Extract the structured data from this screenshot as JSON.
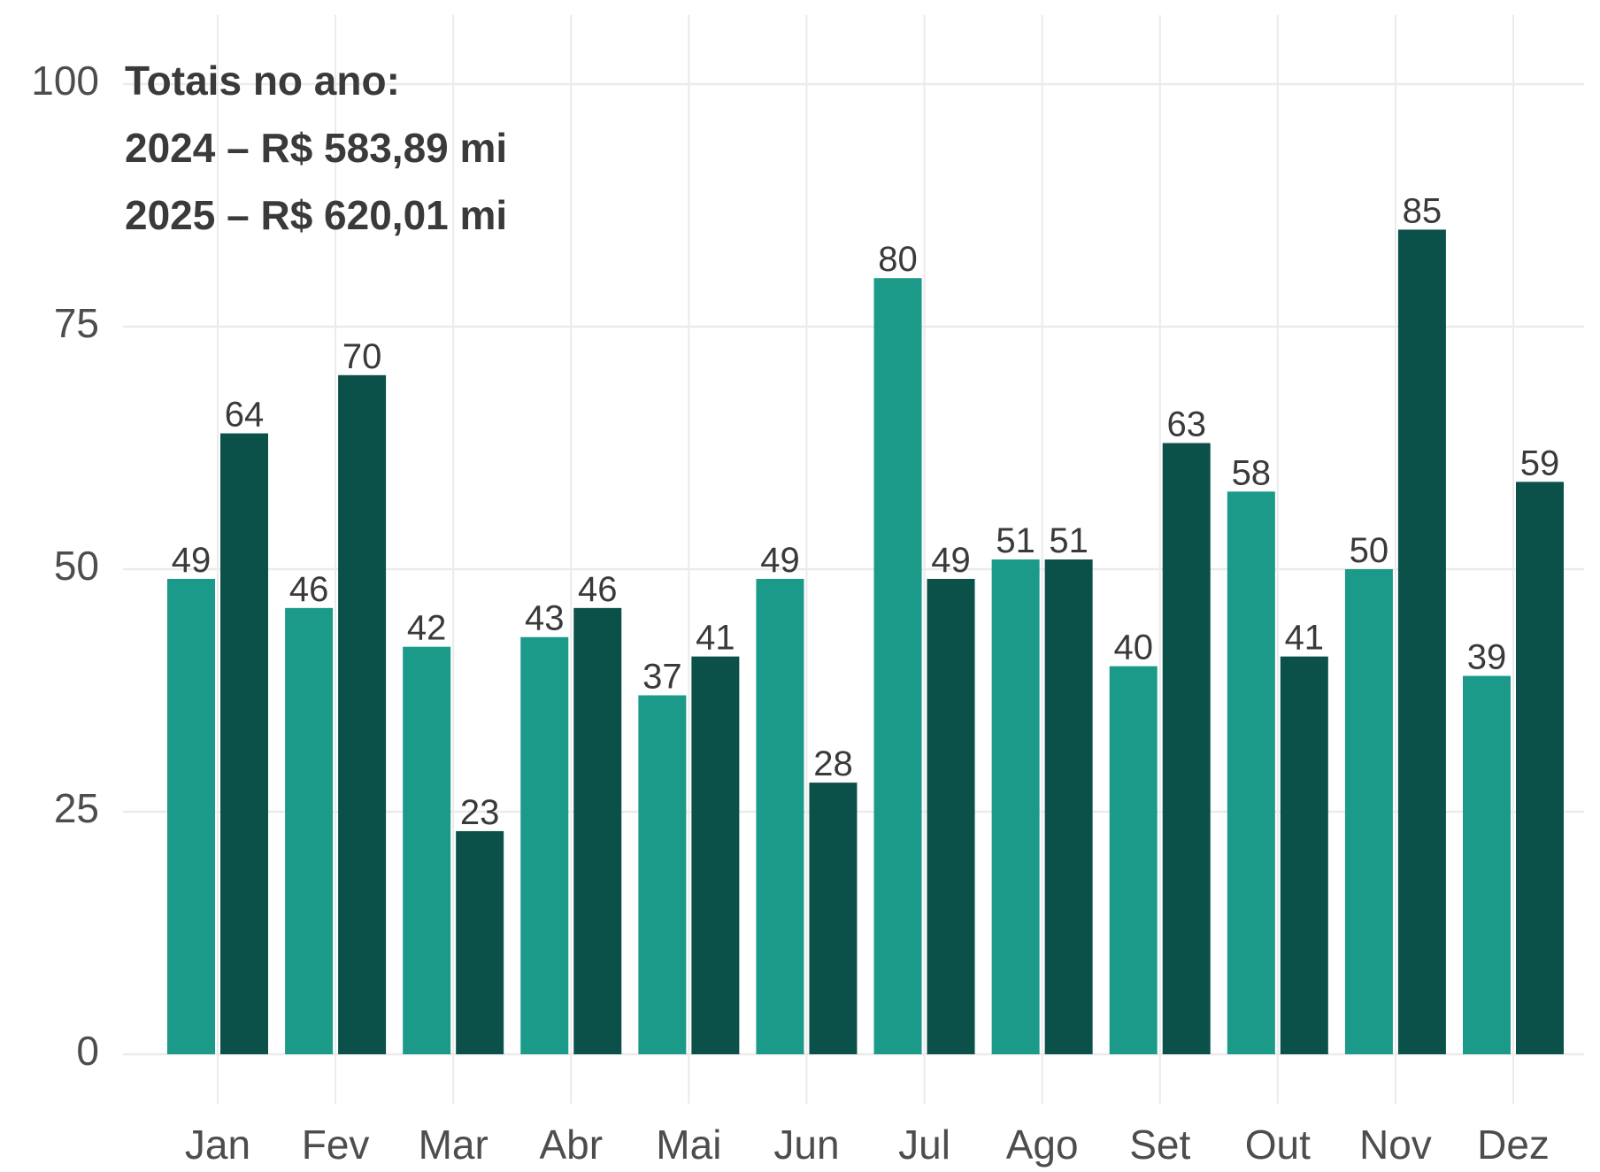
{
  "chart_data": {
    "type": "bar",
    "annotations": [
      "Totais no ano:",
      "2024 – R$ 583,89 mi",
      "2025 – R$ 620,01 mi"
    ],
    "categories": [
      "Jan",
      "Fev",
      "Mar",
      "Abr",
      "Mai",
      "Jun",
      "Jul",
      "Ago",
      "Set",
      "Out",
      "Nov",
      "Dez"
    ],
    "series": [
      {
        "color": "#1b9a8a",
        "values": [
          49,
          46,
          42,
          43,
          37,
          49,
          80,
          51,
          40,
          58,
          50,
          39
        ]
      },
      {
        "color": "#0b5049",
        "values": [
          64,
          70,
          23,
          46,
          41,
          28,
          49,
          51,
          63,
          41,
          85,
          59
        ]
      }
    ],
    "ylim": [
      0,
      100
    ],
    "yticks": [
      0,
      25,
      50,
      75,
      100
    ],
    "grid": true
  }
}
